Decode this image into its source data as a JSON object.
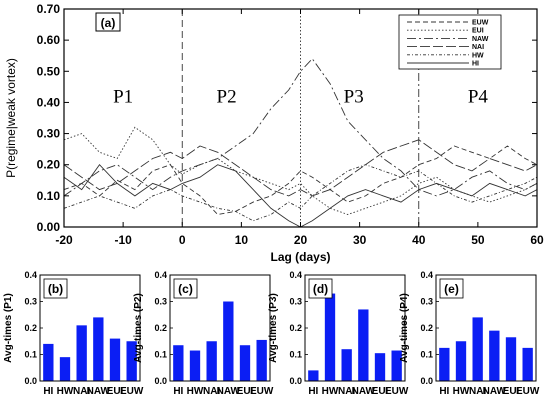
{
  "chart_data": [
    {
      "type": "line",
      "panel_label": "(a)",
      "xlabel": "Lag (days)",
      "ylabel": "P(regime|weak vortex)",
      "xlim": [
        -20,
        60
      ],
      "ylim": [
        0,
        0.7
      ],
      "xticks": [
        -20,
        -10,
        0,
        10,
        20,
        30,
        40,
        50,
        60
      ],
      "xtick_labels": [
        "-20",
        "-10",
        "0",
        "10",
        "20",
        "30",
        "40",
        "50",
        "60"
      ],
      "yticks": [
        0,
        0.1,
        0.2,
        0.3,
        0.4,
        0.5,
        0.6,
        0.7
      ],
      "ytick_labels": [
        "0.00",
        "0.10",
        "0.20",
        "0.30",
        "0.40",
        "0.50",
        "0.60",
        "0.70"
      ],
      "phase_boundaries": [
        0,
        20,
        40
      ],
      "phases": [
        {
          "label": "P1",
          "x": -10,
          "y": 0.4
        },
        {
          "label": "P2",
          "x": 7.5,
          "y": 0.4
        },
        {
          "label": "P3",
          "x": 29,
          "y": 0.4
        },
        {
          "label": "P4",
          "x": 50,
          "y": 0.4
        }
      ],
      "legend_position": "top-right",
      "series": [
        {
          "name": "EUW",
          "dash": "5 3",
          "x": [
            -20,
            -17,
            -14,
            -11,
            -8,
            -5,
            -2,
            0,
            3,
            6,
            9,
            12,
            15,
            18,
            20,
            22,
            25,
            28,
            31,
            34,
            37,
            40,
            43,
            46,
            49,
            52,
            55,
            58,
            60
          ],
          "y": [
            0.12,
            0.14,
            0.1,
            0.15,
            0.12,
            0.18,
            0.2,
            0.14,
            0.1,
            0.04,
            0.05,
            0.08,
            0.1,
            0.14,
            0.18,
            0.16,
            0.12,
            0.08,
            0.1,
            0.14,
            0.16,
            0.2,
            0.22,
            0.26,
            0.24,
            0.22,
            0.26,
            0.22,
            0.2
          ]
        },
        {
          "name": "EUI",
          "dash": "1.5 2",
          "x": [
            -20,
            -17,
            -14,
            -11,
            -8,
            -5,
            -2,
            0,
            3,
            6,
            9,
            12,
            15,
            18,
            20,
            22,
            25,
            28,
            31,
            34,
            37,
            40,
            43,
            46,
            49,
            52,
            55,
            58,
            60
          ],
          "y": [
            0.28,
            0.3,
            0.24,
            0.22,
            0.32,
            0.28,
            0.2,
            0.17,
            0.2,
            0.22,
            0.18,
            0.16,
            0.14,
            0.12,
            0.14,
            0.1,
            0.06,
            0.04,
            0.06,
            0.08,
            0.1,
            0.14,
            0.16,
            0.12,
            0.1,
            0.08,
            0.1,
            0.12,
            0.14
          ]
        },
        {
          "name": "NAW",
          "dash": "9 3 2 3",
          "x": [
            -20,
            -17,
            -14,
            -11,
            -8,
            -5,
            -2,
            0,
            3,
            6,
            9,
            12,
            15,
            18,
            20,
            22,
            25,
            28,
            31,
            34,
            37,
            40,
            43,
            46,
            49,
            52,
            55,
            58,
            60
          ],
          "y": [
            0.1,
            0.14,
            0.18,
            0.2,
            0.16,
            0.12,
            0.16,
            0.18,
            0.2,
            0.22,
            0.26,
            0.3,
            0.38,
            0.44,
            0.5,
            0.54,
            0.46,
            0.34,
            0.28,
            0.22,
            0.18,
            0.12,
            0.1,
            0.12,
            0.16,
            0.18,
            0.14,
            0.12,
            0.14
          ]
        },
        {
          "name": "NAI",
          "dash": "10 3",
          "x": [
            -20,
            -17,
            -14,
            -11,
            -8,
            -5,
            -2,
            0,
            3,
            6,
            9,
            12,
            15,
            18,
            20,
            22,
            25,
            28,
            31,
            34,
            37,
            40,
            43,
            46,
            49,
            52,
            55,
            58,
            60
          ],
          "y": [
            0.2,
            0.16,
            0.12,
            0.14,
            0.18,
            0.22,
            0.24,
            0.22,
            0.26,
            0.24,
            0.2,
            0.16,
            0.12,
            0.1,
            0.12,
            0.1,
            0.12,
            0.16,
            0.2,
            0.24,
            0.26,
            0.28,
            0.24,
            0.2,
            0.18,
            0.22,
            0.2,
            0.18,
            0.2
          ]
        },
        {
          "name": "HW",
          "dash": "3 2 1 2",
          "x": [
            -20,
            -17,
            -14,
            -11,
            -8,
            -5,
            -2,
            0,
            3,
            6,
            9,
            12,
            15,
            18,
            20,
            22,
            25,
            28,
            31,
            34,
            37,
            40,
            43,
            46,
            49,
            52,
            55,
            58,
            60
          ],
          "y": [
            0.06,
            0.08,
            0.1,
            0.08,
            0.06,
            0.1,
            0.12,
            0.1,
            0.08,
            0.06,
            0.05,
            0.02,
            0.04,
            0.08,
            0.06,
            0.1,
            0.14,
            0.18,
            0.2,
            0.18,
            0.16,
            0.18,
            0.14,
            0.1,
            0.08,
            0.1,
            0.12,
            0.14,
            0.16
          ]
        },
        {
          "name": "HI",
          "dash": "",
          "x": [
            -20,
            -17,
            -14,
            -11,
            -8,
            -5,
            -2,
            0,
            3,
            6,
            9,
            12,
            15,
            18,
            20,
            22,
            25,
            28,
            31,
            34,
            37,
            40,
            43,
            46,
            49,
            52,
            55,
            58,
            60
          ],
          "y": [
            0.16,
            0.12,
            0.2,
            0.14,
            0.1,
            0.14,
            0.12,
            0.14,
            0.16,
            0.2,
            0.18,
            0.12,
            0.06,
            0.02,
            0.0,
            0.02,
            0.06,
            0.1,
            0.12,
            0.1,
            0.08,
            0.12,
            0.14,
            0.12,
            0.1,
            0.14,
            0.12,
            0.1,
            0.12
          ]
        }
      ]
    },
    {
      "type": "bar",
      "panel_label": "(b)",
      "ylabel": "Avg-times (P1)",
      "categories": [
        "HI",
        "HW",
        "NAI",
        "NAW",
        "EUI",
        "EUW"
      ],
      "values": [
        0.14,
        0.09,
        0.21,
        0.24,
        0.16,
        0.15
      ],
      "ylim": [
        0,
        0.4
      ],
      "yticks": [
        0.0,
        0.1,
        0.2,
        0.3,
        0.4
      ],
      "ytick_labels": [
        "0.0",
        "0.1",
        "0.2",
        "0.3",
        "0.4"
      ],
      "color": "#0b1ef4"
    },
    {
      "type": "bar",
      "panel_label": "(c)",
      "ylabel": "Avg-times (P2)",
      "categories": [
        "HI",
        "HW",
        "NAI",
        "NAW",
        "EUI",
        "EUW"
      ],
      "values": [
        0.135,
        0.115,
        0.15,
        0.3,
        0.135,
        0.155
      ],
      "ylim": [
        0,
        0.4
      ],
      "yticks": [
        0.0,
        0.1,
        0.2,
        0.3,
        0.4
      ],
      "ytick_labels": [
        "0.0",
        "0.1",
        "0.2",
        "0.3",
        "0.4"
      ],
      "color": "#0b1ef4"
    },
    {
      "type": "bar",
      "panel_label": "(d)",
      "ylabel": "Avg-times (P3)",
      "categories": [
        "HI",
        "HW",
        "NAI",
        "NAW",
        "EUI",
        "EUW"
      ],
      "values": [
        0.04,
        0.33,
        0.12,
        0.27,
        0.105,
        0.115
      ],
      "ylim": [
        0,
        0.4
      ],
      "yticks": [
        0.0,
        0.1,
        0.2,
        0.3,
        0.4
      ],
      "ytick_labels": [
        "0.0",
        "0.1",
        "0.2",
        "0.3",
        "0.4"
      ],
      "color": "#0b1ef4"
    },
    {
      "type": "bar",
      "panel_label": "(e)",
      "ylabel": "Avg-times (P4)",
      "categories": [
        "HI",
        "HW",
        "NAI",
        "NAW",
        "EUI",
        "EUW"
      ],
      "values": [
        0.125,
        0.15,
        0.24,
        0.19,
        0.165,
        0.125
      ],
      "ylim": [
        0,
        0.4
      ],
      "yticks": [
        0.0,
        0.1,
        0.2,
        0.3,
        0.4
      ],
      "ytick_labels": [
        "0.0",
        "0.1",
        "0.2",
        "0.3",
        "0.4"
      ],
      "color": "#0b1ef4"
    }
  ]
}
